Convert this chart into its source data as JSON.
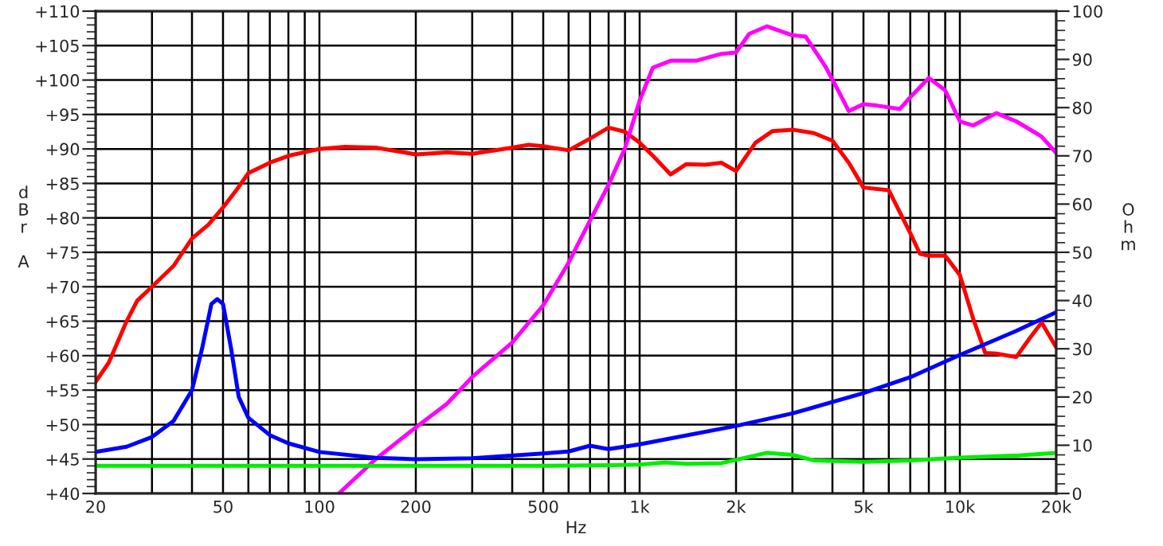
{
  "chart_data": {
    "type": "line",
    "xlabel": "Hz",
    "ylabel": "dBr A",
    "y2label": "Ohm",
    "log": "x",
    "grid": true,
    "marker": "none",
    "line_style": "solid",
    "xlim": [
      20,
      20000
    ],
    "xticks": [
      20,
      {
        "value": 30,
        "label": null
      },
      {
        "value": 40,
        "label": null
      },
      50,
      {
        "value": 60,
        "label": null
      },
      {
        "value": 70,
        "label": null
      },
      {
        "value": 80,
        "label": null
      },
      {
        "value": 90,
        "label": null
      },
      100,
      200,
      {
        "value": 300,
        "label": null
      },
      {
        "value": 400,
        "label": null
      },
      500,
      {
        "value": 600,
        "label": null
      },
      {
        "value": 700,
        "label": null
      },
      {
        "value": 800,
        "label": null
      },
      {
        "value": 900,
        "label": null
      },
      {
        "value": 1000,
        "label": "1k"
      },
      {
        "value": 2000,
        "label": "2k"
      },
      {
        "value": 3000,
        "label": null
      },
      {
        "value": 4000,
        "label": null
      },
      {
        "value": 5000,
        "label": "5k"
      },
      {
        "value": 6000,
        "label": null
      },
      {
        "value": 7000,
        "label": null
      },
      {
        "value": 8000,
        "label": null
      },
      {
        "value": 9000,
        "label": null
      },
      {
        "value": 10000,
        "label": "10k"
      },
      {
        "value": 20000,
        "label": "20k"
      }
    ],
    "ylim": [
      40,
      110
    ],
    "yticks": [
      {
        "value": 40,
        "label": "+40"
      },
      {
        "value": 45,
        "label": "+45"
      },
      {
        "value": 50,
        "label": "+50"
      },
      {
        "value": 55,
        "label": "+55"
      },
      {
        "value": 60,
        "label": "+60"
      },
      {
        "value": 65,
        "label": "+65"
      },
      {
        "value": 70,
        "label": "+70"
      },
      {
        "value": 75,
        "label": "+75"
      },
      {
        "value": 80,
        "label": "+80"
      },
      {
        "value": 85,
        "label": "+85"
      },
      {
        "value": 90,
        "label": "+90"
      },
      {
        "value": 95,
        "label": "+95"
      },
      {
        "value": 100,
        "label": "+100"
      },
      {
        "value": 105,
        "label": "+105"
      },
      {
        "value": 110,
        "label": "+110"
      }
    ],
    "y2lim": [
      0,
      100
    ],
    "y2ticks": [
      0,
      10,
      20,
      30,
      40,
      50,
      60,
      70,
      80,
      90,
      100
    ],
    "series": [
      {
        "color": "#ff0000",
        "x": [
          20,
          22,
          25,
          27,
          30,
          35,
          40,
          45,
          50,
          55,
          60,
          70,
          80,
          100,
          120,
          150,
          200,
          250,
          300,
          400,
          450,
          500,
          600,
          700,
          800,
          900,
          1000,
          1100,
          1250,
          1400,
          1600,
          1800,
          2000,
          2300,
          2600,
          3000,
          3500,
          4000,
          4500,
          5000,
          6000,
          7000,
          7500,
          8000,
          9000,
          10000,
          11000,
          12000,
          13000,
          15000,
          16500,
          18000,
          20000
        ],
        "values": [
          56.2,
          59,
          65,
          68,
          70,
          73,
          77,
          79,
          81.5,
          84,
          86.5,
          88,
          89,
          90,
          90.3,
          90.2,
          89.2,
          89.5,
          89.3,
          90.2,
          90.6,
          90.4,
          89.8,
          91.5,
          93.1,
          92.5,
          90.9,
          89,
          86.3,
          87.8,
          87.7,
          88,
          86.8,
          90.9,
          92.6,
          92.8,
          92.3,
          91.2,
          88,
          84.4,
          84,
          77.8,
          74.8,
          74.5,
          74.5,
          71.7,
          65.4,
          60.4,
          60.3,
          59.8,
          62.5,
          64.8,
          61.2
        ]
      },
      {
        "color": "#ff00ff",
        "x": [
          115,
          150,
          200,
          250,
          300,
          400,
          500,
          600,
          700,
          800,
          900,
          1000,
          1100,
          1250,
          1500,
          1800,
          2000,
          2200,
          2500,
          3000,
          3300,
          3800,
          4200,
          4500,
          5000,
          5500,
          6500,
          7000,
          8000,
          9000,
          10000,
          11000,
          13000,
          15000,
          17000,
          18000,
          20000
        ],
        "values": [
          40,
          45,
          49.6,
          53,
          56.9,
          61.9,
          67.3,
          73.5,
          79.6,
          84.8,
          90.1,
          97,
          101.8,
          102.8,
          102.8,
          103.8,
          104,
          106.7,
          107.8,
          106.5,
          106.3,
          102,
          98.2,
          95.5,
          96.5,
          96.3,
          95.8,
          97.5,
          100.3,
          98.5,
          94,
          93.4,
          95.2,
          94,
          92.5,
          91.8,
          89.4
        ]
      },
      {
        "color": "#00ee00",
        "x": [
          20,
          500,
          800,
          1000,
          1200,
          1400,
          1800,
          2500,
          3000,
          3500,
          5000,
          7000,
          10000,
          15000,
          20000
        ],
        "values": [
          44.0,
          44.0,
          44.1,
          44.2,
          44.5,
          44.3,
          44.4,
          45.9,
          45.6,
          44.8,
          44.6,
          44.8,
          45.2,
          45.5,
          45.9
        ]
      },
      {
        "color": "#0000ff",
        "axis": "y2",
        "x": [
          20,
          25,
          30,
          35,
          40,
          43,
          46,
          48,
          50,
          53,
          56,
          60,
          70,
          80,
          100,
          150,
          200,
          300,
          500,
          600,
          700,
          800,
          1000,
          2000,
          3000,
          5000,
          7000,
          10000,
          15000,
          20000
        ],
        "values": [
          8.6,
          9.7,
          11.7,
          15,
          21.4,
          30,
          39.3,
          40.3,
          39.3,
          30,
          20,
          15.7,
          12.1,
          10.4,
          8.6,
          7.4,
          7.1,
          7.3,
          8.3,
          8.7,
          9.9,
          9.2,
          10.2,
          14,
          16.6,
          20.8,
          24.1,
          28.7,
          33.7,
          37.6
        ]
      }
    ]
  }
}
